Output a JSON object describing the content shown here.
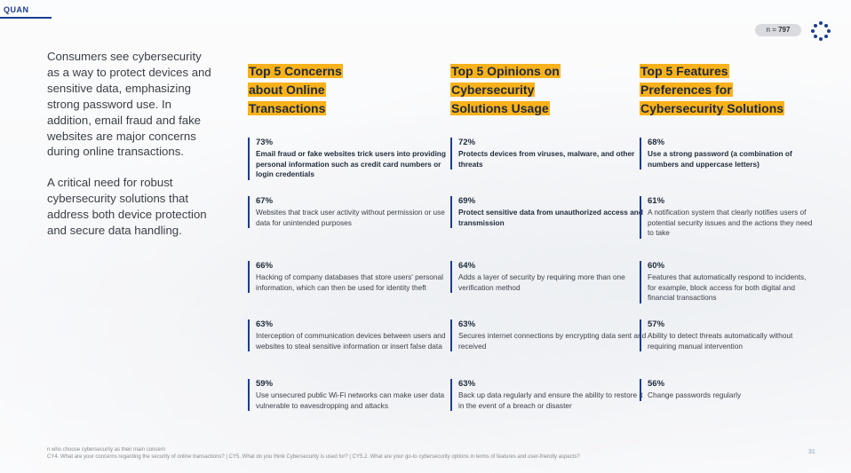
{
  "brand": "QUAN",
  "sample": {
    "prefix": "n = ",
    "value": "797"
  },
  "intro": {
    "p1": "Consumers see cybersecurity as a way to protect devices and sensitive data, emphasizing strong password use. In addition, email fraud and fake websites are major concerns during online transactions.",
    "p2": "A critical need for robust cybersecurity solutions that address both device protection and secure data handling."
  },
  "columns": [
    {
      "title_lines": [
        "Top 5 Concerns",
        "about Online",
        "Transactions"
      ],
      "items": [
        {
          "pct": "73%",
          "text": "Email fraud or fake websites trick users into providing personal information such as credit card numbers or login credentials",
          "bold": true
        },
        {
          "pct": "67%",
          "text": "Websites that track user activity without permission or use data for unintended purposes",
          "bold": false
        },
        {
          "pct": "66%",
          "text": "Hacking of company databases that store users' personal information, which can then be used for identity theft",
          "bold": false
        },
        {
          "pct": "63%",
          "text": "Interception of communication devices between users and websites to steal sensitive information or insert false data",
          "bold": false
        },
        {
          "pct": "59%",
          "text": "Use unsecured public Wi-Fi networks can make user data vulnerable to eavesdropping and attacks",
          "bold": false
        }
      ]
    },
    {
      "title_lines": [
        "Top 5 Opinions on",
        "Cybersecurity",
        "Solutions Usage"
      ],
      "items": [
        {
          "pct": "72%",
          "text": "Protects devices from viruses, malware, and other threats",
          "bold": true
        },
        {
          "pct": "69%",
          "text": "Protect sensitive data from unauthorized access and transmission",
          "bold": true
        },
        {
          "pct": "64%",
          "text": "Adds a layer of security by requiring more than one verification method",
          "bold": false
        },
        {
          "pct": "63%",
          "text": "Secures internet connections by encrypting data sent and received",
          "bold": false
        },
        {
          "pct": "63%",
          "text": "Back up data regularly and ensure the ability to restore it in the event of a breach or disaster",
          "bold": false
        }
      ]
    },
    {
      "title_lines": [
        "Top 5 Features",
        "Preferences for",
        "Cybersecurity Solutions"
      ],
      "items": [
        {
          "pct": "68%",
          "text": "Use a strong password (a combination of numbers and uppercase letters)",
          "bold": true
        },
        {
          "pct": "61%",
          "text": "A notification system that clearly notifies users of potential security issues and the actions they need to take",
          "bold": false
        },
        {
          "pct": "60%",
          "text": "Features that automatically respond to incidents, for example, block access for both digital and financial transactions",
          "bold": false
        },
        {
          "pct": "57%",
          "text": "Ability to detect threats automatically without requiring manual intervention",
          "bold": false
        },
        {
          "pct": "56%",
          "text": "Change passwords regularly",
          "bold": false
        }
      ]
    }
  ],
  "footer": {
    "base": "n who choose cybersecurity as their main concern",
    "questions": "CY4. What are your concerns regarding the security of online transactions? | CY5. What do you think Cybersecurity is used for? | CY5.2. What are your go-to cybersecurity options in terms of features and user-friendly aspects?",
    "page": "31"
  },
  "colors": {
    "accent": "#f9b21b",
    "brand": "#1c3d8f"
  }
}
